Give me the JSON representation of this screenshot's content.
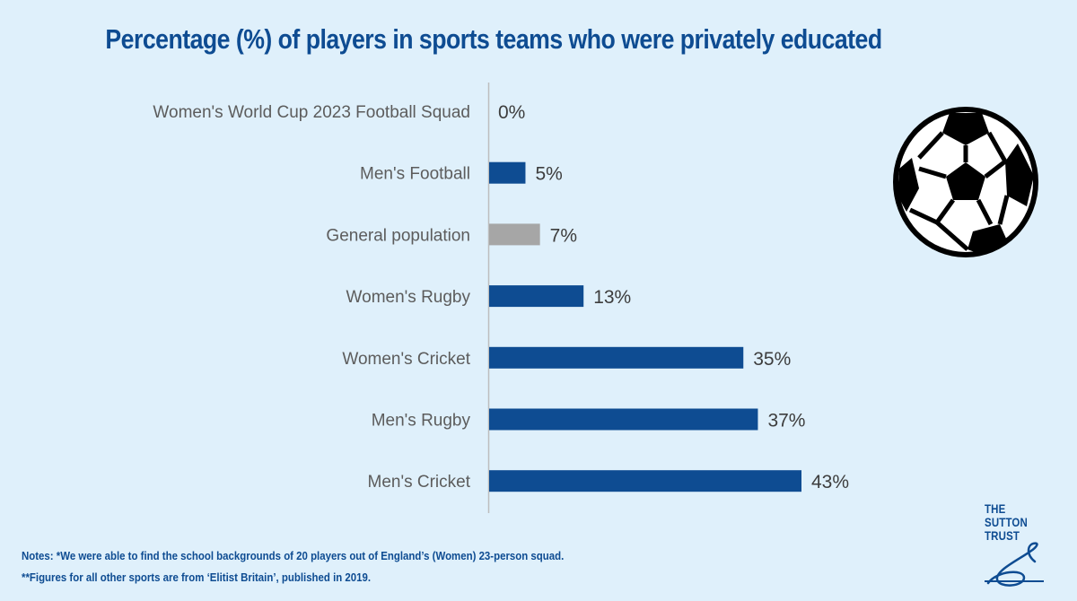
{
  "title": "Percentage (%) of players in sports teams who were privately educated",
  "notes": [
    "Notes: *We were able to find the school backgrounds of 20 players out of England’s (Women) 23-person squad.",
    "**Figures for all other sports are from ‘Elitist Britain’, published in 2019."
  ],
  "logo": {
    "lines": [
      "THE",
      "SUTTON",
      "TRUST"
    ]
  },
  "icons": {
    "ball": "football-icon",
    "logo": "sutton-trust-logo"
  },
  "colors": {
    "background": "#dff0fb",
    "bar": "#0e4c92",
    "highlight_bar": "#a6a6a6",
    "title": "#0e4c92"
  },
  "chart_data": {
    "type": "bar",
    "orientation": "horizontal",
    "categories": [
      "Women's World Cup 2023 Football Squad",
      "Men's Football",
      "General population",
      "Women's Rugby",
      "Women's Cricket",
      "Men's Rugby",
      "Men's Cricket"
    ],
    "values": [
      0,
      5,
      7,
      13,
      35,
      37,
      43
    ],
    "value_labels": [
      "0%",
      "5%",
      "7%",
      "13%",
      "35%",
      "37%",
      "43%"
    ],
    "bar_colors": [
      "#0e4c92",
      "#0e4c92",
      "#a6a6a6",
      "#0e4c92",
      "#0e4c92",
      "#0e4c92",
      "#0e4c92"
    ],
    "title": "Percentage (%) of players in sports teams who were privately educated",
    "xlabel": "",
    "ylabel": "",
    "xlim": [
      0,
      43
    ],
    "grid": false,
    "legend": "none"
  }
}
